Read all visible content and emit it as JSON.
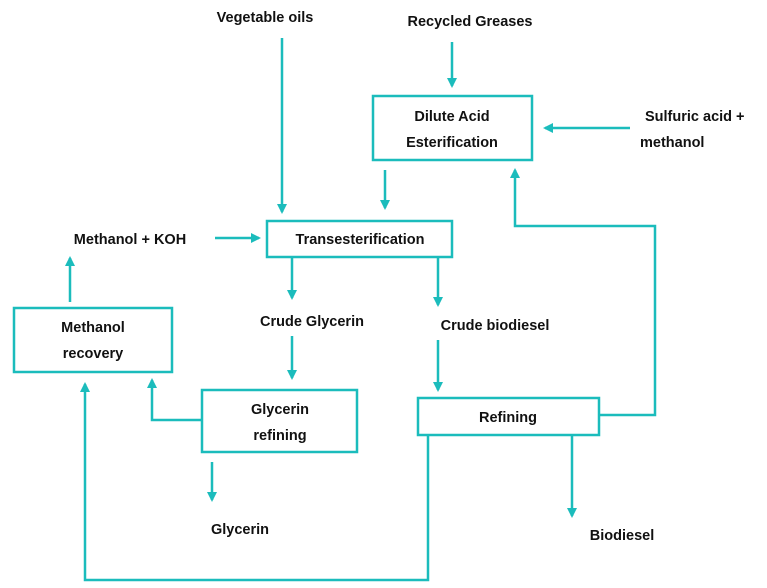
{
  "nodes": [
    {
      "label": "Vegetable oils"
    },
    {
      "label": "Recycled Greases"
    },
    {
      "lines": [
        "Dilute Acid",
        "Esterification"
      ]
    },
    {
      "lines": [
        "Sulfuric acid +",
        "methanol"
      ]
    },
    {
      "label": "Transesterification"
    },
    {
      "label": "Methanol + KOH"
    },
    {
      "label": "Crude Glycerin"
    },
    {
      "label": "Crude biodiesel"
    },
    {
      "lines": [
        "Methanol",
        "recovery"
      ]
    },
    {
      "lines": [
        "Glycerin",
        "refining"
      ]
    },
    {
      "label": "Refining"
    },
    {
      "label": "Glycerin"
    },
    {
      "label": "Biodiesel"
    }
  ]
}
